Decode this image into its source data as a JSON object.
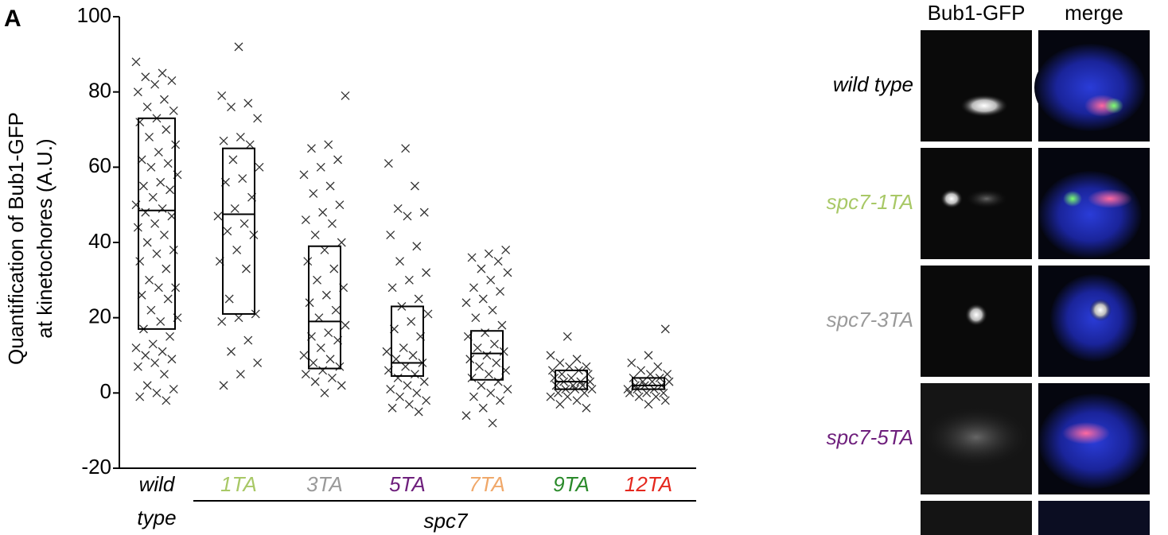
{
  "figure_label": "A",
  "chart_data": {
    "type": "box",
    "ylabel": [
      "Quantification of Bub1-GFP",
      "at kinetochores (A.U.)"
    ],
    "ylim": [
      -20,
      100
    ],
    "yticks": [
      -20,
      0,
      20,
      40,
      60,
      80,
      100
    ],
    "categories": [
      "wild type",
      "1TA",
      "3TA",
      "5TA",
      "7TA",
      "9TA",
      "12TA"
    ],
    "category_colors": [
      "#000000",
      "#a8c866",
      "#9a9a9a",
      "#6e1f7c",
      "#f0a86a",
      "#2a8a2a",
      "#e5281e"
    ],
    "group_label": "spc7",
    "boxes": [
      {
        "q1": 17,
        "median": 48.5,
        "q3": 73
      },
      {
        "q1": 21,
        "median": 47.5,
        "q3": 65
      },
      {
        "q1": 6.5,
        "median": 19,
        "q3": 39
      },
      {
        "q1": 4.5,
        "median": 8,
        "q3": 23
      },
      {
        "q1": 3.5,
        "median": 10.5,
        "q3": 16.5
      },
      {
        "q1": 1,
        "median": 3,
        "q3": 6
      },
      {
        "q1": 1,
        "median": 2,
        "q3": 4
      }
    ],
    "points": [
      [
        88,
        85,
        84,
        83,
        82,
        80,
        78,
        76,
        75,
        73,
        72,
        70,
        68,
        66,
        64,
        62,
        61,
        60,
        58,
        56,
        55,
        54,
        52,
        50,
        49,
        48,
        47,
        45,
        44,
        42,
        40,
        38,
        37,
        35,
        33,
        30,
        28,
        28,
        26,
        25,
        22,
        20,
        19,
        17,
        15,
        13,
        12,
        11,
        10,
        9,
        8,
        7,
        5,
        2,
        1,
        0,
        -1,
        -2
      ],
      [
        92,
        79,
        77,
        76,
        73,
        68,
        67,
        66,
        62,
        60,
        57,
        56,
        52,
        49,
        47,
        45,
        43,
        42,
        38,
        35,
        33,
        25,
        21,
        20,
        19,
        14,
        11,
        8,
        5,
        2
      ],
      [
        79,
        66,
        65,
        62,
        60,
        58,
        55,
        53,
        50,
        48,
        46,
        45,
        42,
        40,
        38,
        35,
        33,
        30,
        28,
        26,
        24,
        22,
        20,
        18,
        16,
        15,
        14,
        12,
        10,
        9,
        8,
        7,
        6,
        5,
        4,
        3,
        2,
        0
      ],
      [
        65,
        61,
        55,
        49,
        48,
        47,
        42,
        39,
        35,
        32,
        30,
        28,
        25,
        23,
        21,
        19,
        17,
        15,
        12,
        11,
        10,
        9,
        8,
        7,
        6,
        5,
        4,
        3,
        2,
        1,
        0,
        -1,
        -2,
        -3,
        -4,
        -5
      ],
      [
        38,
        37,
        36,
        35,
        33,
        32,
        30,
        28,
        27,
        25,
        24,
        22,
        20,
        18,
        16,
        15,
        13,
        12,
        11,
        10,
        9,
        8,
        7,
        6,
        5,
        4,
        3,
        2,
        1,
        0,
        -1,
        -2,
        -4,
        -6,
        -8
      ],
      [
        15,
        10,
        9,
        8,
        7,
        7,
        6,
        6,
        5,
        5,
        4,
        4,
        3,
        3,
        3,
        2,
        2,
        2,
        1,
        1,
        1,
        0,
        0,
        -1,
        -1,
        -2,
        -3,
        -4
      ],
      [
        17,
        10,
        8,
        7,
        6,
        5,
        5,
        4,
        4,
        3,
        3,
        3,
        2,
        2,
        2,
        1,
        1,
        1,
        0,
        0,
        0,
        -1,
        -1,
        -2,
        -3
      ]
    ]
  },
  "micrographs": {
    "columns": [
      "Bub1-GFP",
      "merge"
    ],
    "rows": [
      {
        "label": "wild type",
        "color": "#000000"
      },
      {
        "label": "spc7-1TA",
        "color": "#a8c866"
      },
      {
        "label": "spc7-3TA",
        "color": "#9a9a9a"
      },
      {
        "label": "spc7-5TA",
        "color": "#6e1f7c"
      }
    ]
  }
}
